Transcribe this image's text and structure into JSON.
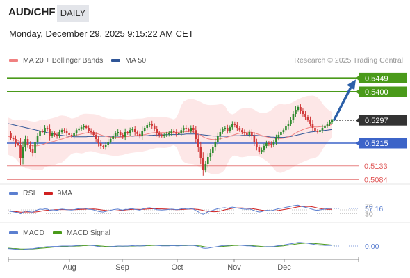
{
  "header": {
    "symbol": "AUD/CHF",
    "timeframe": "DAILY",
    "timestamp": "Monday, December 29, 2025 9:15:22 AM CET"
  },
  "main_legend": [
    {
      "label": "MA 20 + Bollinger Bands",
      "color": "#f08080"
    },
    {
      "label": "MA 50",
      "color": "#2f5597"
    }
  ],
  "credit": "Research © 2025 Trading Central",
  "colors": {
    "green": "#4a9a1a",
    "blue": "#3c64c8",
    "red": "#e05858",
    "dark": "#333333",
    "band_fill": "#fde3e3",
    "candle_up": "#2e8b2e",
    "candle_down": "#d03838",
    "arrow": "#2b5fa8"
  },
  "chart_data": {
    "type": "candlestick",
    "x_tick_labels": [
      "Aug",
      "Sep",
      "Oct",
      "Nov",
      "Dec"
    ],
    "price_range": [
      0.5075,
      0.5485
    ],
    "levels": [
      {
        "label": "0.5449",
        "value": 0.5449,
        "style": "green-box"
      },
      {
        "label": "0.5400",
        "value": 0.54,
        "style": "green-box"
      },
      {
        "label": "0.5297",
        "value": 0.5297,
        "style": "dark-box"
      },
      {
        "label": "0.5215",
        "value": 0.5215,
        "style": "blue-box"
      },
      {
        "label": "0.5133",
        "value": 0.5133,
        "style": "red-text"
      },
      {
        "label": "0.5084",
        "value": 0.5084,
        "style": "red-text"
      }
    ],
    "arrow": {
      "from": 0.5297,
      "to": 0.5449
    },
    "series": [
      {
        "name": "price",
        "values": [
          0.525,
          0.5235,
          0.523,
          0.5215,
          0.521,
          0.516,
          0.52,
          0.523,
          0.521,
          0.5195,
          0.518,
          0.522,
          0.524,
          0.526,
          0.5255,
          0.527,
          0.5265,
          0.524,
          0.525,
          0.5245,
          0.524,
          0.5255,
          0.5262,
          0.5258,
          0.525,
          0.5245,
          0.524,
          0.525,
          0.5262,
          0.5268,
          0.5272,
          0.5275,
          0.527,
          0.526,
          0.5255,
          0.5245,
          0.523,
          0.5215,
          0.5205,
          0.52,
          0.521,
          0.522,
          0.523,
          0.524,
          0.525,
          0.5255,
          0.5245,
          0.5238,
          0.5255,
          0.525,
          0.5262,
          0.5265,
          0.5255,
          0.5248,
          0.524,
          0.526,
          0.527,
          0.528,
          0.5285,
          0.5278,
          0.5265,
          0.525,
          0.5245,
          0.524,
          0.5245,
          0.5248,
          0.525,
          0.526,
          0.5255,
          0.5248,
          0.525,
          0.5262,
          0.527,
          0.5265,
          0.526,
          0.527,
          0.5262,
          0.523,
          0.52,
          0.516,
          0.512,
          0.514,
          0.5165,
          0.518,
          0.52,
          0.522,
          0.524,
          0.5255,
          0.5265,
          0.527,
          0.526,
          0.5272,
          0.5285,
          0.528,
          0.527,
          0.5262,
          0.5255,
          0.525,
          0.5245,
          0.5255,
          0.524,
          0.522,
          0.52,
          0.5185,
          0.519,
          0.5205,
          0.5215,
          0.5212,
          0.5208,
          0.522,
          0.5235,
          0.5245,
          0.5255,
          0.5262,
          0.5275,
          0.5285,
          0.53,
          0.532,
          0.5335,
          0.5345,
          0.533,
          0.532,
          0.531,
          0.53,
          0.5285,
          0.527,
          0.526,
          0.5255,
          0.5262,
          0.527,
          0.5278,
          0.5285,
          0.529,
          0.5297
        ]
      },
      {
        "name": "MA 20",
        "values": [
          0.524,
          0.5236,
          0.5232,
          0.5228,
          0.5224,
          0.5218,
          0.5214,
          0.5212,
          0.521,
          0.5208,
          0.5206,
          0.5205,
          0.5206,
          0.5208,
          0.521,
          0.5213,
          0.5216,
          0.5218,
          0.522,
          0.5222,
          0.5225,
          0.5228,
          0.523,
          0.5233,
          0.5236,
          0.5238,
          0.524,
          0.5242,
          0.5244,
          0.5246,
          0.5248,
          0.525,
          0.5252,
          0.5253,
          0.5253,
          0.5252,
          0.525,
          0.5248,
          0.5245,
          0.5242,
          0.524,
          0.5238,
          0.5237,
          0.5236,
          0.5236,
          0.5236,
          0.5237,
          0.5237,
          0.5238,
          0.5239,
          0.524,
          0.5241,
          0.5242,
          0.5243,
          0.5243,
          0.5244,
          0.5246,
          0.5248,
          0.525,
          0.5252,
          0.5253,
          0.5253,
          0.5253,
          0.5253,
          0.5253,
          0.5253,
          0.5253,
          0.5254,
          0.5254,
          0.5254,
          0.5254,
          0.5255,
          0.5256,
          0.5256,
          0.5257,
          0.5257,
          0.5256,
          0.5253,
          0.5249,
          0.5244,
          0.5238,
          0.5234,
          0.5231,
          0.5229,
          0.5228,
          0.5228,
          0.5229,
          0.5231,
          0.5233,
          0.5235,
          0.5237,
          0.524,
          0.5243,
          0.5246,
          0.5249,
          0.5251,
          0.5252,
          0.5253,
          0.5254,
          0.5255,
          0.5254,
          0.5252,
          0.5249,
          0.5246,
          0.5243,
          0.524,
          0.5238,
          0.5236,
          0.5234,
          0.5233,
          0.5232,
          0.5232,
          0.5232,
          0.5233,
          0.5235,
          0.5238,
          0.5241,
          0.5246,
          0.5251,
          0.5256,
          0.526,
          0.5264,
          0.5267,
          0.527,
          0.5272,
          0.5273,
          0.5273,
          0.5273,
          0.5274,
          0.5275,
          0.5276,
          0.5278,
          0.528,
          0.5282
        ]
      },
      {
        "name": "MA 50",
        "values": [
          0.5285,
          0.5283,
          0.5281,
          0.5279,
          0.5277,
          0.5275,
          0.5273,
          0.5271,
          0.5269,
          0.5267,
          0.5265,
          0.5263,
          0.5261,
          0.5259,
          0.5257,
          0.5255,
          0.5253,
          0.5251,
          0.5249,
          0.5247,
          0.5245,
          0.5244,
          0.5243,
          0.5242,
          0.5241,
          0.524,
          0.5239,
          0.5238,
          0.5238,
          0.5238,
          0.5238,
          0.5238,
          0.5238,
          0.5239,
          0.5239,
          0.5239,
          0.524,
          0.524,
          0.524,
          0.524,
          0.524,
          0.524,
          0.524,
          0.524,
          0.524,
          0.524,
          0.524,
          0.524,
          0.524,
          0.524,
          0.524,
          0.524,
          0.5241,
          0.5241,
          0.5241,
          0.5241,
          0.5242,
          0.5242,
          0.5243,
          0.5243,
          0.5244,
          0.5244,
          0.5244,
          0.5245,
          0.5245,
          0.5245,
          0.5246,
          0.5246,
          0.5246,
          0.5246,
          0.5247,
          0.5247,
          0.5247,
          0.5248,
          0.5248,
          0.5248,
          0.5248,
          0.5248,
          0.5247,
          0.5246,
          0.5245,
          0.5244,
          0.5243,
          0.5242,
          0.5241,
          0.5241,
          0.524,
          0.524,
          0.524,
          0.524,
          0.524,
          0.5241,
          0.5241,
          0.5242,
          0.5242,
          0.5242,
          0.5243,
          0.5243,
          0.5243,
          0.5244,
          0.5244,
          0.5243,
          0.5243,
          0.5242,
          0.5241,
          0.524,
          0.5239,
          0.5238,
          0.5237,
          0.5237,
          0.5236,
          0.5236,
          0.5236,
          0.5236,
          0.5237,
          0.5238,
          0.5239,
          0.5241,
          0.5243,
          0.5245,
          0.5247,
          0.5249,
          0.5251,
          0.5253,
          0.5255,
          0.5256,
          0.5257,
          0.5258,
          0.5259,
          0.526,
          0.5261,
          0.5262,
          0.5263,
          0.5264
        ]
      }
    ],
    "rsi": {
      "legend": [
        {
          "label": "RSI",
          "color": "#5b7fd0"
        },
        {
          "label": "9MA",
          "color": "#d02020"
        }
      ],
      "levels": [
        "70",
        "30"
      ],
      "value_label": "57.16",
      "range": [
        0,
        100
      ],
      "values": [
        45,
        42,
        40,
        38,
        36,
        30,
        38,
        45,
        42,
        40,
        38,
        46,
        50,
        54,
        52,
        55,
        54,
        48,
        50,
        49,
        48,
        52,
        54,
        53,
        51,
        50,
        49,
        51,
        54,
        56,
        57,
        58,
        56,
        53,
        52,
        50,
        46,
        42,
        40,
        39,
        42,
        45,
        48,
        51,
        53,
        54,
        51,
        49,
        53,
        52,
        55,
        56,
        53,
        51,
        49,
        54,
        57,
        60,
        61,
        59,
        55,
        51,
        50,
        49,
        50,
        51,
        52,
        54,
        53,
        51,
        52,
        55,
        57,
        55,
        54,
        56,
        54,
        46,
        40,
        33,
        28,
        34,
        40,
        44,
        48,
        52,
        56,
        58,
        60,
        61,
        58,
        61,
        64,
        62,
        59,
        57,
        55,
        54,
        53,
        55,
        51,
        46,
        42,
        39,
        41,
        45,
        48,
        47,
        46,
        49,
        53,
        56,
        58,
        60,
        63,
        65,
        68,
        71,
        73,
        74,
        69,
        66,
        63,
        60,
        56,
        52,
        49,
        48,
        50,
        52,
        54,
        56,
        57,
        57.16
      ]
    },
    "macd": {
      "legend": [
        {
          "label": "MACD",
          "color": "#5b7fd0"
        },
        {
          "label": "MACD Signal",
          "color": "#4a9a1a"
        }
      ],
      "value_label": "0.00",
      "range": [
        -0.004,
        0.004
      ],
      "macd": [
        -0.0012,
        -0.0013,
        -0.0014,
        -0.0015,
        -0.0016,
        -0.0018,
        -0.0017,
        -0.0015,
        -0.0014,
        -0.0013,
        -0.0013,
        -0.0011,
        -0.0009,
        -0.0007,
        -0.0006,
        -0.0004,
        -0.0003,
        -0.0003,
        -0.0002,
        -0.0002,
        -0.0002,
        -0.0001,
        0.0,
        0.0,
        0.0,
        0.0,
        0.0,
        0.0001,
        0.0002,
        0.0003,
        0.0004,
        0.0005,
        0.0005,
        0.0004,
        0.0003,
        0.0002,
        0.0,
        -0.0002,
        -0.0004,
        -0.0005,
        -0.0005,
        -0.0004,
        -0.0003,
        -0.0002,
        -0.0001,
        0.0,
        0.0,
        -0.0001,
        0.0,
        0.0,
        0.0001,
        0.0002,
        0.0001,
        0.0001,
        0.0,
        0.0001,
        0.0002,
        0.0004,
        0.0005,
        0.0005,
        0.0004,
        0.0003,
        0.0002,
        0.0001,
        0.0001,
        0.0001,
        0.0001,
        0.0002,
        0.0002,
        0.0001,
        0.0001,
        0.0002,
        0.0003,
        0.0003,
        0.0003,
        0.0003,
        0.0003,
        0.0001,
        -0.0002,
        -0.0006,
        -0.001,
        -0.0011,
        -0.001,
        -0.0008,
        -0.0006,
        -0.0004,
        -0.0002,
        0.0,
        0.0002,
        0.0003,
        0.0003,
        0.0004,
        0.0005,
        0.0005,
        0.0005,
        0.0004,
        0.0003,
        0.0002,
        0.0001,
        0.0001,
        0.0,
        -0.0002,
        -0.0004,
        -0.0005,
        -0.0005,
        -0.0004,
        -0.0003,
        -0.0003,
        -0.0003,
        -0.0002,
        0.0,
        0.0002,
        0.0003,
        0.0005,
        0.0007,
        0.0009,
        0.0011,
        0.0013,
        0.0015,
        0.0017,
        0.0017,
        0.0016,
        0.0015,
        0.0013,
        0.0011,
        0.0009,
        0.0007,
        0.0005,
        0.0004,
        0.0004,
        0.0003,
        0.0003,
        0.0003,
        0.0003
      ],
      "signal": [
        -0.001,
        -0.0011,
        -0.0012,
        -0.0012,
        -0.0013,
        -0.0014,
        -0.0014,
        -0.0014,
        -0.0014,
        -0.0014,
        -0.0014,
        -0.0013,
        -0.0012,
        -0.0011,
        -0.001,
        -0.0009,
        -0.0008,
        -0.0007,
        -0.0006,
        -0.0005,
        -0.0004,
        -0.0004,
        -0.0003,
        -0.0002,
        -0.0002,
        -0.0001,
        -0.0001,
        -0.0001,
        0.0,
        0.0,
        0.0001,
        0.0002,
        0.0002,
        0.0003,
        0.0003,
        0.0003,
        0.0002,
        0.0001,
        0.0,
        -0.0001,
        -0.0002,
        -0.0002,
        -0.0002,
        -0.0002,
        -0.0002,
        -0.0001,
        -0.0001,
        -0.0001,
        -0.0001,
        -0.0001,
        0.0,
        0.0,
        0.0,
        0.0001,
        0.0001,
        0.0001,
        0.0001,
        0.0002,
        0.0002,
        0.0003,
        0.0003,
        0.0003,
        0.0003,
        0.0002,
        0.0002,
        0.0002,
        0.0002,
        0.0002,
        0.0002,
        0.0002,
        0.0002,
        0.0002,
        0.0002,
        0.0002,
        0.0003,
        0.0003,
        0.0003,
        0.0002,
        0.0001,
        0.0,
        -0.0002,
        -0.0004,
        -0.0005,
        -0.0005,
        -0.0005,
        -0.0005,
        -0.0004,
        -0.0003,
        -0.0002,
        -0.0001,
        0.0,
        0.0001,
        0.0002,
        0.0003,
        0.0003,
        0.0004,
        0.0004,
        0.0003,
        0.0003,
        0.0002,
        0.0002,
        0.0001,
        0.0,
        -0.0001,
        -0.0002,
        -0.0003,
        -0.0003,
        -0.0003,
        -0.0003,
        -0.0003,
        -0.0002,
        -0.0001,
        0.0,
        0.0001,
        0.0003,
        0.0004,
        0.0006,
        0.0007,
        0.0009,
        0.0011,
        0.0012,
        0.0013,
        0.0014,
        0.0014,
        0.0013,
        0.0013,
        0.0012,
        0.0011,
        0.001,
        0.0009,
        0.0008,
        0.0007,
        0.0006,
        0.0005,
        0.0004
      ]
    }
  }
}
